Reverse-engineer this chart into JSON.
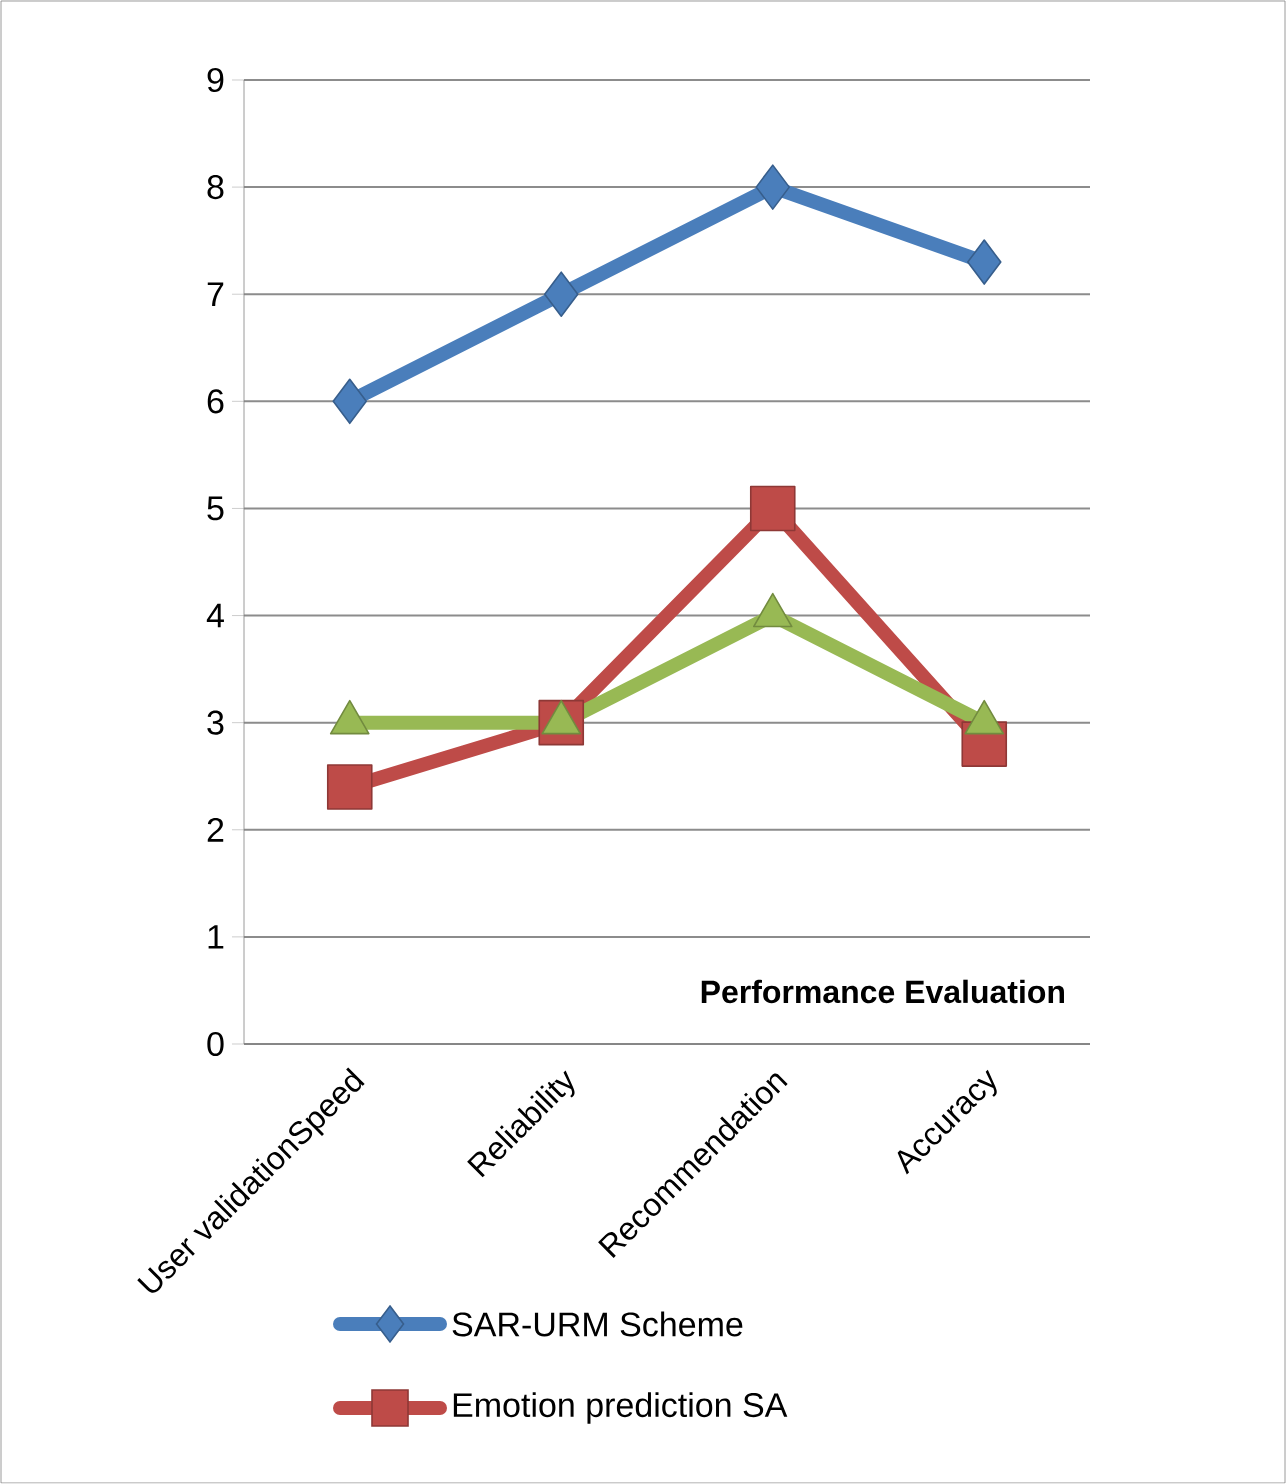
{
  "chart_data": {
    "type": "line",
    "categories": [
      "User validationSpeed",
      "Reliability",
      "Recommendation",
      "Accuracy"
    ],
    "series": [
      {
        "name": "SAR-URM Scheme",
        "color": "#4a7ebb",
        "marker": "diamond",
        "values": [
          6,
          7,
          8,
          7.3
        ]
      },
      {
        "name": "Emotion prediction SA",
        "color": "#be4b48",
        "marker": "square",
        "values": [
          2.4,
          3,
          5,
          2.8
        ]
      },
      {
        "color": "#98b954",
        "marker": "triangle",
        "values": [
          3,
          3,
          4,
          3
        ]
      }
    ],
    "ylim": [
      0,
      9
    ],
    "yticks": [
      0,
      1,
      2,
      3,
      4,
      5,
      6,
      7,
      8,
      9
    ],
    "grid": "y",
    "legend": "bottom",
    "annotations": [
      "Performance Evaluation"
    ]
  }
}
